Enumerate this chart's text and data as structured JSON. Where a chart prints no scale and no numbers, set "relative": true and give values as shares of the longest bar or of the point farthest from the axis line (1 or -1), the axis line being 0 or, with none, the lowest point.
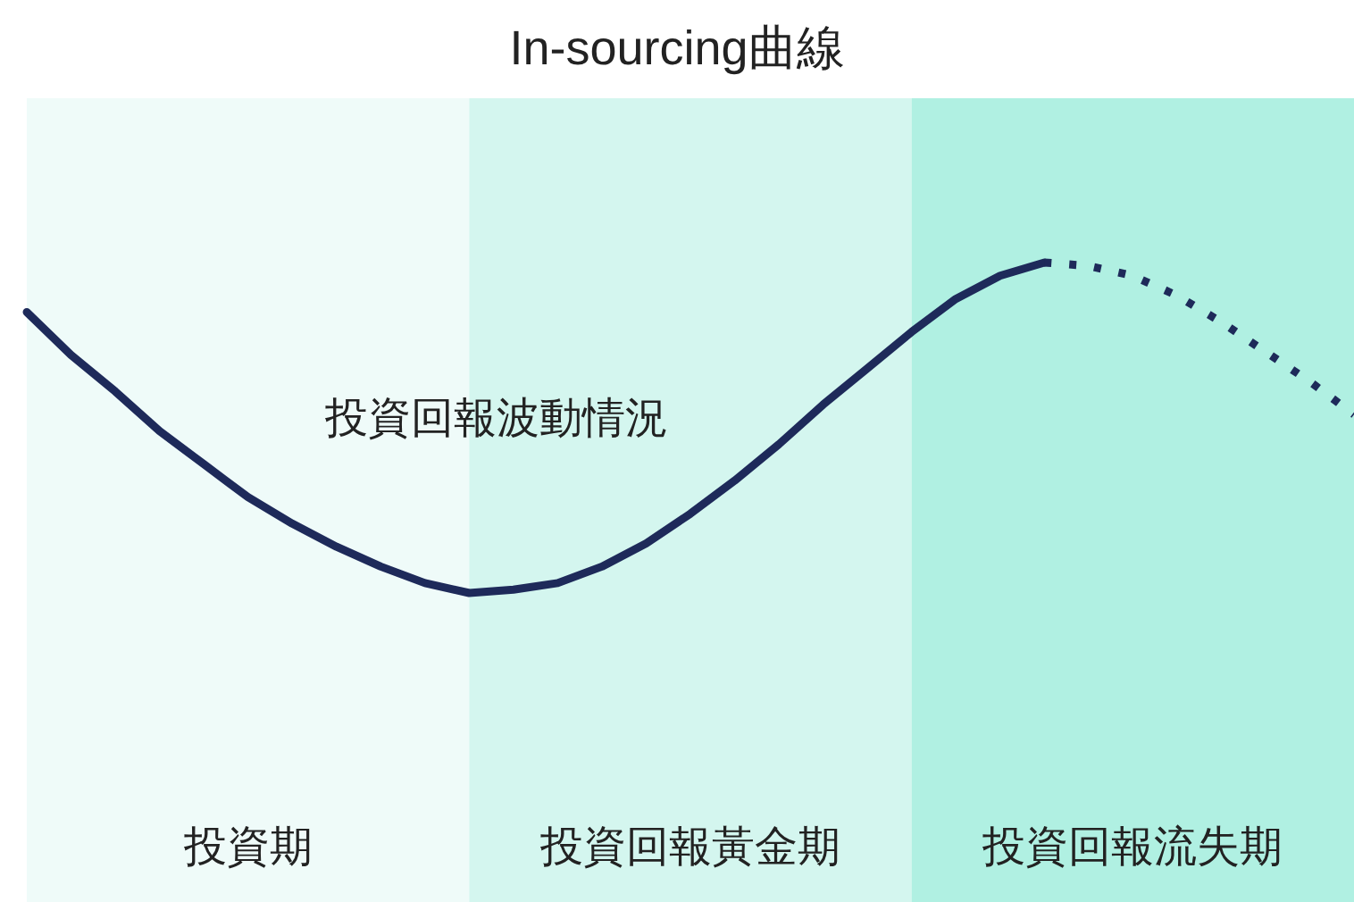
{
  "chart_data": {
    "type": "line",
    "title": "In-sourcing曲線",
    "relative": true,
    "categories": [
      null,
      null,
      null,
      null,
      null,
      null,
      null,
      null,
      null,
      null,
      null,
      null,
      null,
      null,
      null,
      null,
      null,
      null,
      null,
      null,
      null,
      null,
      null,
      null,
      null,
      null,
      null,
      null,
      null,
      null,
      null
    ],
    "series": [
      {
        "color": "#1e2a5a",
        "line_style": "solid",
        "values": [
          0.85,
          0.72,
          0.61,
          0.49,
          0.39,
          0.29,
          0.21,
          0.14,
          0.08,
          0.03,
          0,
          0.01,
          0.03,
          0.08,
          0.15,
          0.24,
          0.34,
          0.45,
          0.57,
          0.68,
          0.79,
          0.89,
          0.96,
          1.0,
          null,
          null,
          null,
          null,
          null,
          null,
          null
        ]
      },
      {
        "color": "#1e2a5a",
        "line_style": "dotted",
        "values": [
          null,
          null,
          null,
          null,
          null,
          null,
          null,
          null,
          null,
          null,
          null,
          null,
          null,
          null,
          null,
          null,
          null,
          null,
          null,
          null,
          null,
          null,
          null,
          1.0,
          0.99,
          0.96,
          0.9,
          0.82,
          0.73,
          0.64,
          0.54
        ]
      }
    ],
    "annotations": [
      "投資回報波動情況",
      "投資期",
      "投資回報黃金期",
      "投資回報流失期"
    ]
  }
}
